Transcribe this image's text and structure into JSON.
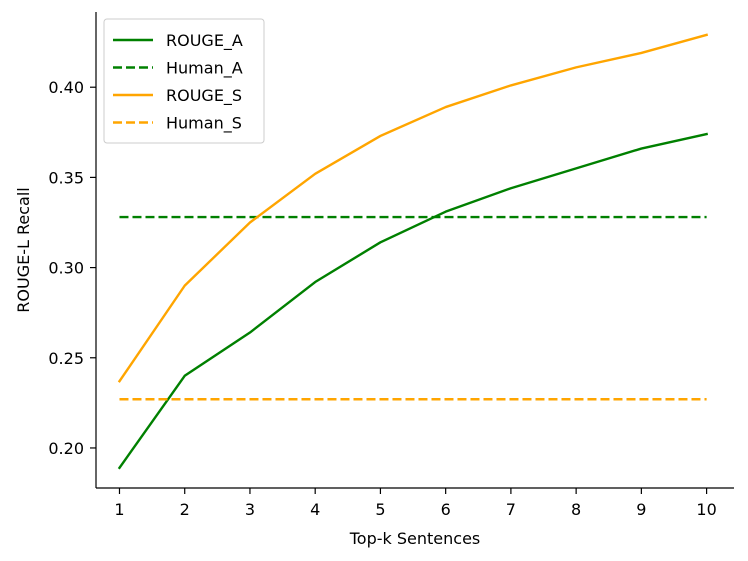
{
  "chart_data": {
    "type": "line",
    "title": "",
    "xlabel": "Top-k Sentences",
    "ylabel": "ROUGE-L Recall",
    "x": [
      1,
      2,
      3,
      4,
      5,
      6,
      7,
      8,
      9,
      10
    ],
    "xticks": [
      "1",
      "2",
      "3",
      "4",
      "5",
      "6",
      "7",
      "8",
      "9",
      "10"
    ],
    "yticks": [
      "0.20",
      "0.25",
      "0.30",
      "0.35",
      "0.40"
    ],
    "xlim": [
      0.64,
      10.42
    ],
    "ylim": [
      0.1778,
      0.4417
    ],
    "grid": false,
    "legend_position": "top-left",
    "series": [
      {
        "name": "ROUGE_A",
        "style": "solid",
        "color": "#008000",
        "values": [
          0.189,
          0.24,
          0.264,
          0.292,
          0.314,
          0.331,
          0.344,
          0.355,
          0.366,
          0.374
        ]
      },
      {
        "name": "Human_A",
        "style": "dashed",
        "color": "#008000",
        "values": [
          0.328,
          0.328,
          0.328,
          0.328,
          0.328,
          0.328,
          0.328,
          0.328,
          0.328,
          0.328
        ]
      },
      {
        "name": "ROUGE_S",
        "style": "solid",
        "color": "#ffa500",
        "values": [
          0.237,
          0.29,
          0.325,
          0.352,
          0.373,
          0.389,
          0.401,
          0.411,
          0.419,
          0.429
        ]
      },
      {
        "name": "Human_S",
        "style": "dashed",
        "color": "#ffa500",
        "values": [
          0.227,
          0.227,
          0.227,
          0.227,
          0.227,
          0.227,
          0.227,
          0.227,
          0.227,
          0.227
        ]
      }
    ]
  }
}
